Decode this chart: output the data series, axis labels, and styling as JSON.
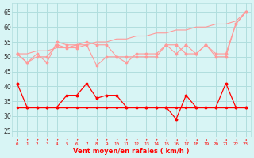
{
  "x": [
    0,
    1,
    2,
    3,
    4,
    5,
    6,
    7,
    8,
    9,
    10,
    11,
    12,
    13,
    14,
    15,
    16,
    17,
    18,
    19,
    20,
    21,
    22,
    23
  ],
  "series_wind_avg": [
    41,
    33,
    33,
    33,
    33,
    37,
    37,
    41,
    36,
    37,
    37,
    33,
    33,
    33,
    33,
    33,
    29,
    37,
    33,
    33,
    33,
    41,
    33,
    33
  ],
  "series_wind_flat": [
    33,
    33,
    33,
    33,
    33,
    33,
    33,
    33,
    33,
    33,
    33,
    33,
    33,
    33,
    33,
    33,
    33,
    33,
    33,
    33,
    33,
    33,
    33,
    33
  ],
  "series_gust1": [
    51,
    48,
    51,
    48,
    55,
    54,
    54,
    55,
    54,
    54,
    50,
    48,
    51,
    51,
    51,
    54,
    54,
    51,
    51,
    54,
    51,
    51,
    61,
    65
  ],
  "series_gust_diag": [
    51,
    51,
    52,
    52,
    53,
    53,
    54,
    54,
    55,
    55,
    56,
    56,
    57,
    57,
    58,
    58,
    59,
    59,
    60,
    60,
    61,
    61,
    62,
    65
  ],
  "series_gust2": [
    51,
    48,
    50,
    50,
    54,
    53,
    53,
    54,
    47,
    50,
    50,
    50,
    50,
    50,
    50,
    54,
    51,
    54,
    51,
    54,
    50,
    50,
    61,
    65
  ],
  "bg_color": "#d8f5f5",
  "grid_color": "#b0dede",
  "line_color_dark": "#ff0000",
  "line_color_light": "#ff9999",
  "xlabel": "Vent moyen/en rafales ( km/h )",
  "ylim": [
    23,
    68
  ],
  "yticks": [
    25,
    30,
    35,
    40,
    45,
    50,
    55,
    60,
    65
  ],
  "xlim": [
    -0.5,
    23.5
  ],
  "arrows": [
    "↗",
    "↑",
    "↑",
    "↑",
    "↑",
    "↑",
    "↑",
    "↓",
    "↑",
    "↑",
    "↑",
    "↑",
    "↑",
    "↑",
    "↑",
    "↗",
    "↗",
    "↗",
    "↗",
    "↗",
    "↗",
    "↗",
    "↗",
    "↗"
  ]
}
